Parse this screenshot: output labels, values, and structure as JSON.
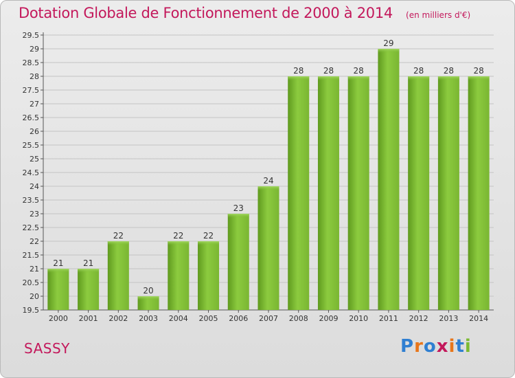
{
  "chart_data": {
    "type": "bar",
    "title": "Dotation Globale de Fonctionnement de 2000 à 2014",
    "unit_label": "(en milliers d'€)",
    "categories": [
      "2000",
      "2001",
      "2002",
      "2003",
      "2004",
      "2005",
      "2006",
      "2007",
      "2008",
      "2009",
      "2010",
      "2011",
      "2012",
      "2013",
      "2014"
    ],
    "values": [
      21,
      21,
      22,
      20,
      22,
      22,
      23,
      24,
      28,
      28,
      28,
      29,
      28,
      28,
      28
    ],
    "ylim": [
      19.5,
      29.5
    ],
    "yticks": [
      "19.5",
      "20",
      "20.5",
      "21",
      "21.5",
      "22",
      "22.5",
      "23",
      "23.5",
      "24",
      "24.5",
      "25",
      "25.5",
      "26",
      "26.5",
      "27",
      "27.5",
      "28",
      "28.5",
      "29",
      "29.5"
    ],
    "bar_color": "#7cba32",
    "grid": true,
    "legend": "none"
  },
  "footer": {
    "commune": "SASSY",
    "brand_letters": [
      "P",
      "r",
      "o",
      "x",
      "i",
      "t",
      "i"
    ],
    "brand_colors": [
      "#2f7fd1",
      "#e8761a",
      "#2f7fd1",
      "#c3185b",
      "#e8761a",
      "#2f7fd1",
      "#7cba32"
    ]
  }
}
